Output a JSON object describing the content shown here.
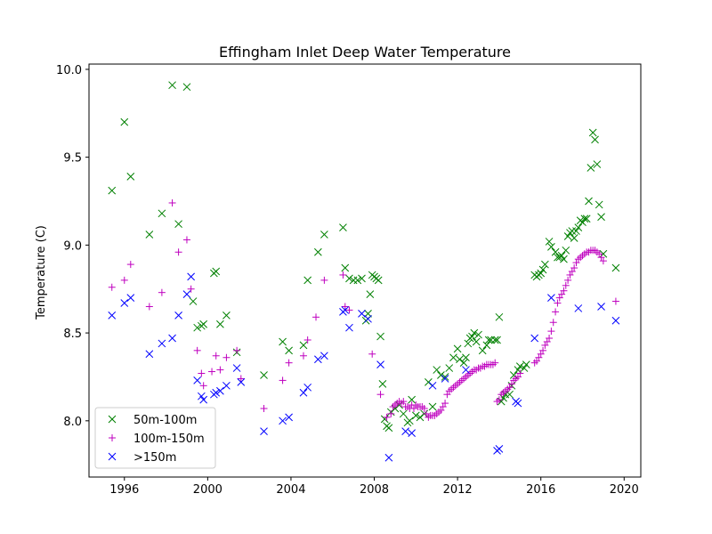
{
  "chart_data": {
    "type": "scatter",
    "title": "Effingham Inlet Deep Water Temperature",
    "xlabel": "",
    "ylabel": "Temperature (C)",
    "xlim": [
      1994.3,
      2020.8
    ],
    "ylim": [
      7.68,
      10.03
    ],
    "xticks": [
      1996,
      2000,
      2004,
      2008,
      2012,
      2016,
      2020
    ],
    "yticks": [
      8.0,
      8.5,
      9.0,
      9.5,
      10.0
    ],
    "grid": false,
    "legend_position": "lower-left",
    "series": [
      {
        "name": "50m-100m",
        "marker": "x",
        "color": "#008000",
        "points": [
          [
            1995.4,
            9.31
          ],
          [
            1996.0,
            9.7
          ],
          [
            1996.3,
            9.39
          ],
          [
            1997.2,
            9.06
          ],
          [
            1997.8,
            9.18
          ],
          [
            1998.3,
            9.91
          ],
          [
            1998.6,
            9.12
          ],
          [
            1999.0,
            9.9
          ],
          [
            1999.3,
            8.68
          ],
          [
            1999.5,
            8.53
          ],
          [
            1999.7,
            8.54
          ],
          [
            1999.8,
            8.55
          ],
          [
            2000.3,
            8.84
          ],
          [
            2000.4,
            8.85
          ],
          [
            2000.6,
            8.55
          ],
          [
            2000.9,
            8.6
          ],
          [
            2001.4,
            8.39
          ],
          [
            2002.7,
            8.26
          ],
          [
            2003.6,
            8.45
          ],
          [
            2003.9,
            8.4
          ],
          [
            2004.6,
            8.43
          ],
          [
            2004.8,
            8.8
          ],
          [
            2005.3,
            8.96
          ],
          [
            2005.6,
            9.06
          ],
          [
            2006.5,
            9.1
          ],
          [
            2006.6,
            8.87
          ],
          [
            2006.8,
            8.81
          ],
          [
            2007.0,
            8.8
          ],
          [
            2007.2,
            8.8
          ],
          [
            2007.4,
            8.81
          ],
          [
            2007.6,
            8.57
          ],
          [
            2007.7,
            8.61
          ],
          [
            2007.8,
            8.72
          ],
          [
            2007.9,
            8.83
          ],
          [
            2008.0,
            8.82
          ],
          [
            2008.1,
            8.81
          ],
          [
            2008.2,
            8.8
          ],
          [
            2008.3,
            8.48
          ],
          [
            2008.4,
            8.21
          ],
          [
            2008.5,
            8.01
          ],
          [
            2008.6,
            7.97
          ],
          [
            2008.7,
            7.96
          ],
          [
            2008.8,
            8.05
          ],
          [
            2009.0,
            8.07
          ],
          [
            2009.2,
            8.09
          ],
          [
            2009.4,
            8.04
          ],
          [
            2009.6,
            7.99
          ],
          [
            2009.7,
            8.0
          ],
          [
            2009.8,
            8.12
          ],
          [
            2010.0,
            8.03
          ],
          [
            2010.2,
            8.02
          ],
          [
            2010.4,
            8.04
          ],
          [
            2010.6,
            8.22
          ],
          [
            2010.8,
            8.08
          ],
          [
            2011.0,
            8.29
          ],
          [
            2011.2,
            8.26
          ],
          [
            2011.4,
            8.25
          ],
          [
            2011.6,
            8.3
          ],
          [
            2011.8,
            8.36
          ],
          [
            2012.0,
            8.41
          ],
          [
            2012.1,
            8.35
          ],
          [
            2012.3,
            8.33
          ],
          [
            2012.4,
            8.36
          ],
          [
            2012.5,
            8.44
          ],
          [
            2012.6,
            8.47
          ],
          [
            2012.7,
            8.48
          ],
          [
            2012.8,
            8.5
          ],
          [
            2012.9,
            8.45
          ],
          [
            2013.0,
            8.49
          ],
          [
            2013.2,
            8.4
          ],
          [
            2013.4,
            8.43
          ],
          [
            2013.5,
            8.46
          ],
          [
            2013.6,
            8.46
          ],
          [
            2013.8,
            8.46
          ],
          [
            2013.9,
            8.46
          ],
          [
            2014.0,
            8.59
          ],
          [
            2014.1,
            8.11
          ],
          [
            2014.2,
            8.13
          ],
          [
            2014.3,
            8.15
          ],
          [
            2014.5,
            8.15
          ],
          [
            2014.6,
            8.2
          ],
          [
            2014.7,
            8.26
          ],
          [
            2014.9,
            8.29
          ],
          [
            2015.0,
            8.31
          ],
          [
            2015.2,
            8.3
          ],
          [
            2015.3,
            8.32
          ],
          [
            2015.7,
            8.83
          ],
          [
            2015.8,
            8.82
          ],
          [
            2015.9,
            8.83
          ],
          [
            2016.0,
            8.84
          ],
          [
            2016.1,
            8.86
          ],
          [
            2016.2,
            8.89
          ],
          [
            2016.4,
            9.02
          ],
          [
            2016.5,
            8.99
          ],
          [
            2016.7,
            8.96
          ],
          [
            2016.8,
            8.93
          ],
          [
            2016.9,
            8.93
          ],
          [
            2017.0,
            8.94
          ],
          [
            2017.1,
            8.92
          ],
          [
            2017.2,
            8.97
          ],
          [
            2017.3,
            9.05
          ],
          [
            2017.4,
            9.07
          ],
          [
            2017.5,
            9.08
          ],
          [
            2017.6,
            9.04
          ],
          [
            2017.7,
            9.08
          ],
          [
            2017.8,
            9.1
          ],
          [
            2017.9,
            9.14
          ],
          [
            2018.0,
            9.13
          ],
          [
            2018.1,
            9.15
          ],
          [
            2018.2,
            9.15
          ],
          [
            2018.3,
            9.25
          ],
          [
            2018.4,
            9.44
          ],
          [
            2018.5,
            9.64
          ],
          [
            2018.6,
            9.6
          ],
          [
            2018.7,
            9.46
          ],
          [
            2018.8,
            9.23
          ],
          [
            2018.9,
            9.16
          ],
          [
            2019.0,
            8.95
          ],
          [
            2019.6,
            8.87
          ]
        ]
      },
      {
        "name": "100m-150m",
        "marker": "+",
        "color": "#bf00bf",
        "points": [
          [
            1995.4,
            8.76
          ],
          [
            1996.0,
            8.8
          ],
          [
            1996.3,
            8.89
          ],
          [
            1997.2,
            8.65
          ],
          [
            1997.8,
            8.73
          ],
          [
            1998.3,
            9.24
          ],
          [
            1998.6,
            8.96
          ],
          [
            1999.0,
            9.03
          ],
          [
            1999.2,
            8.75
          ],
          [
            1999.5,
            8.4
          ],
          [
            1999.7,
            8.27
          ],
          [
            1999.8,
            8.2
          ],
          [
            2000.2,
            8.28
          ],
          [
            2000.4,
            8.37
          ],
          [
            2000.6,
            8.29
          ],
          [
            2000.9,
            8.36
          ],
          [
            2001.4,
            8.4
          ],
          [
            2001.6,
            8.24
          ],
          [
            2002.7,
            8.07
          ],
          [
            2003.6,
            8.23
          ],
          [
            2003.9,
            8.33
          ],
          [
            2004.6,
            8.37
          ],
          [
            2004.8,
            8.46
          ],
          [
            2005.2,
            8.59
          ],
          [
            2005.6,
            8.8
          ],
          [
            2006.5,
            8.83
          ],
          [
            2006.6,
            8.65
          ],
          [
            2006.8,
            8.63
          ],
          [
            2007.9,
            8.38
          ],
          [
            2008.3,
            8.15
          ],
          [
            2008.6,
            8.02
          ],
          [
            2008.8,
            8.04
          ],
          [
            2008.9,
            8.08
          ],
          [
            2009.0,
            8.09
          ],
          [
            2009.1,
            8.1
          ],
          [
            2009.2,
            8.11
          ],
          [
            2009.3,
            8.1
          ],
          [
            2009.4,
            8.11
          ],
          [
            2009.5,
            8.08
          ],
          [
            2009.6,
            8.08
          ],
          [
            2009.7,
            8.07
          ],
          [
            2009.8,
            8.09
          ],
          [
            2009.9,
            8.07
          ],
          [
            2010.0,
            8.09
          ],
          [
            2010.1,
            8.08
          ],
          [
            2010.2,
            8.08
          ],
          [
            2010.3,
            8.08
          ],
          [
            2010.4,
            8.07
          ],
          [
            2010.5,
            8.04
          ],
          [
            2010.6,
            8.02
          ],
          [
            2010.7,
            8.03
          ],
          [
            2010.8,
            8.03
          ],
          [
            2010.9,
            8.03
          ],
          [
            2011.0,
            8.04
          ],
          [
            2011.1,
            8.05
          ],
          [
            2011.2,
            8.06
          ],
          [
            2011.3,
            8.08
          ],
          [
            2011.4,
            8.1
          ],
          [
            2011.5,
            8.15
          ],
          [
            2011.6,
            8.17
          ],
          [
            2011.7,
            8.18
          ],
          [
            2011.8,
            8.19
          ],
          [
            2011.9,
            8.2
          ],
          [
            2012.0,
            8.21
          ],
          [
            2012.1,
            8.22
          ],
          [
            2012.2,
            8.23
          ],
          [
            2012.3,
            8.24
          ],
          [
            2012.4,
            8.25
          ],
          [
            2012.5,
            8.26
          ],
          [
            2012.6,
            8.27
          ],
          [
            2012.7,
            8.28
          ],
          [
            2012.8,
            8.29
          ],
          [
            2012.9,
            8.29
          ],
          [
            2013.0,
            8.3
          ],
          [
            2013.1,
            8.3
          ],
          [
            2013.2,
            8.31
          ],
          [
            2013.3,
            8.31
          ],
          [
            2013.4,
            8.32
          ],
          [
            2013.5,
            8.32
          ],
          [
            2013.6,
            8.32
          ],
          [
            2013.7,
            8.32
          ],
          [
            2013.8,
            8.33
          ],
          [
            2013.9,
            8.11
          ],
          [
            2014.0,
            8.12
          ],
          [
            2014.1,
            8.15
          ],
          [
            2014.2,
            8.16
          ],
          [
            2014.3,
            8.17
          ],
          [
            2014.4,
            8.18
          ],
          [
            2014.5,
            8.19
          ],
          [
            2014.6,
            8.21
          ],
          [
            2014.7,
            8.23
          ],
          [
            2014.8,
            8.24
          ],
          [
            2014.9,
            8.25
          ],
          [
            2015.0,
            8.27
          ],
          [
            2015.7,
            8.33
          ],
          [
            2015.8,
            8.34
          ],
          [
            2015.9,
            8.36
          ],
          [
            2016.0,
            8.38
          ],
          [
            2016.1,
            8.4
          ],
          [
            2016.2,
            8.43
          ],
          [
            2016.3,
            8.45
          ],
          [
            2016.4,
            8.47
          ],
          [
            2016.5,
            8.51
          ],
          [
            2016.6,
            8.56
          ],
          [
            2016.7,
            8.62
          ],
          [
            2016.8,
            8.67
          ],
          [
            2016.9,
            8.7
          ],
          [
            2017.0,
            8.72
          ],
          [
            2017.1,
            8.74
          ],
          [
            2017.2,
            8.77
          ],
          [
            2017.3,
            8.8
          ],
          [
            2017.4,
            8.83
          ],
          [
            2017.5,
            8.85
          ],
          [
            2017.6,
            8.87
          ],
          [
            2017.7,
            8.9
          ],
          [
            2017.8,
            8.92
          ],
          [
            2017.9,
            8.93
          ],
          [
            2018.0,
            8.94
          ],
          [
            2018.1,
            8.95
          ],
          [
            2018.2,
            8.96
          ],
          [
            2018.3,
            8.96
          ],
          [
            2018.4,
            8.97
          ],
          [
            2018.5,
            8.97
          ],
          [
            2018.6,
            8.97
          ],
          [
            2018.7,
            8.96
          ],
          [
            2018.8,
            8.95
          ],
          [
            2018.9,
            8.93
          ],
          [
            2019.0,
            8.91
          ],
          [
            2019.6,
            8.68
          ]
        ]
      },
      {
        "name": ">150m",
        "marker": "x",
        "color": "#0000ff",
        "points": [
          [
            1995.4,
            8.6
          ],
          [
            1996.0,
            8.67
          ],
          [
            1996.3,
            8.7
          ],
          [
            1997.2,
            8.38
          ],
          [
            1997.8,
            8.44
          ],
          [
            1998.3,
            8.47
          ],
          [
            1998.6,
            8.6
          ],
          [
            1999.0,
            8.72
          ],
          [
            1999.2,
            8.82
          ],
          [
            1999.5,
            8.23
          ],
          [
            1999.7,
            8.14
          ],
          [
            1999.8,
            8.12
          ],
          [
            2000.3,
            8.15
          ],
          [
            2000.4,
            8.16
          ],
          [
            2000.6,
            8.17
          ],
          [
            2000.9,
            8.2
          ],
          [
            2001.4,
            8.3
          ],
          [
            2001.6,
            8.22
          ],
          [
            2002.7,
            7.94
          ],
          [
            2003.6,
            8.0
          ],
          [
            2003.9,
            8.02
          ],
          [
            2004.6,
            8.16
          ],
          [
            2004.8,
            8.19
          ],
          [
            2005.3,
            8.35
          ],
          [
            2005.6,
            8.37
          ],
          [
            2006.5,
            8.62
          ],
          [
            2006.6,
            8.63
          ],
          [
            2006.8,
            8.53
          ],
          [
            2007.4,
            8.61
          ],
          [
            2007.7,
            8.58
          ],
          [
            2008.3,
            8.32
          ],
          [
            2008.7,
            7.79
          ],
          [
            2009.5,
            7.94
          ],
          [
            2009.8,
            7.93
          ],
          [
            2010.8,
            8.2
          ],
          [
            2011.4,
            8.24
          ],
          [
            2012.4,
            8.29
          ],
          [
            2013.9,
            7.83
          ],
          [
            2014.0,
            7.84
          ],
          [
            2014.8,
            8.11
          ],
          [
            2014.9,
            8.1
          ],
          [
            2015.7,
            8.47
          ],
          [
            2016.5,
            8.7
          ],
          [
            2017.8,
            8.64
          ],
          [
            2018.9,
            8.65
          ],
          [
            2019.6,
            8.57
          ]
        ]
      }
    ]
  }
}
